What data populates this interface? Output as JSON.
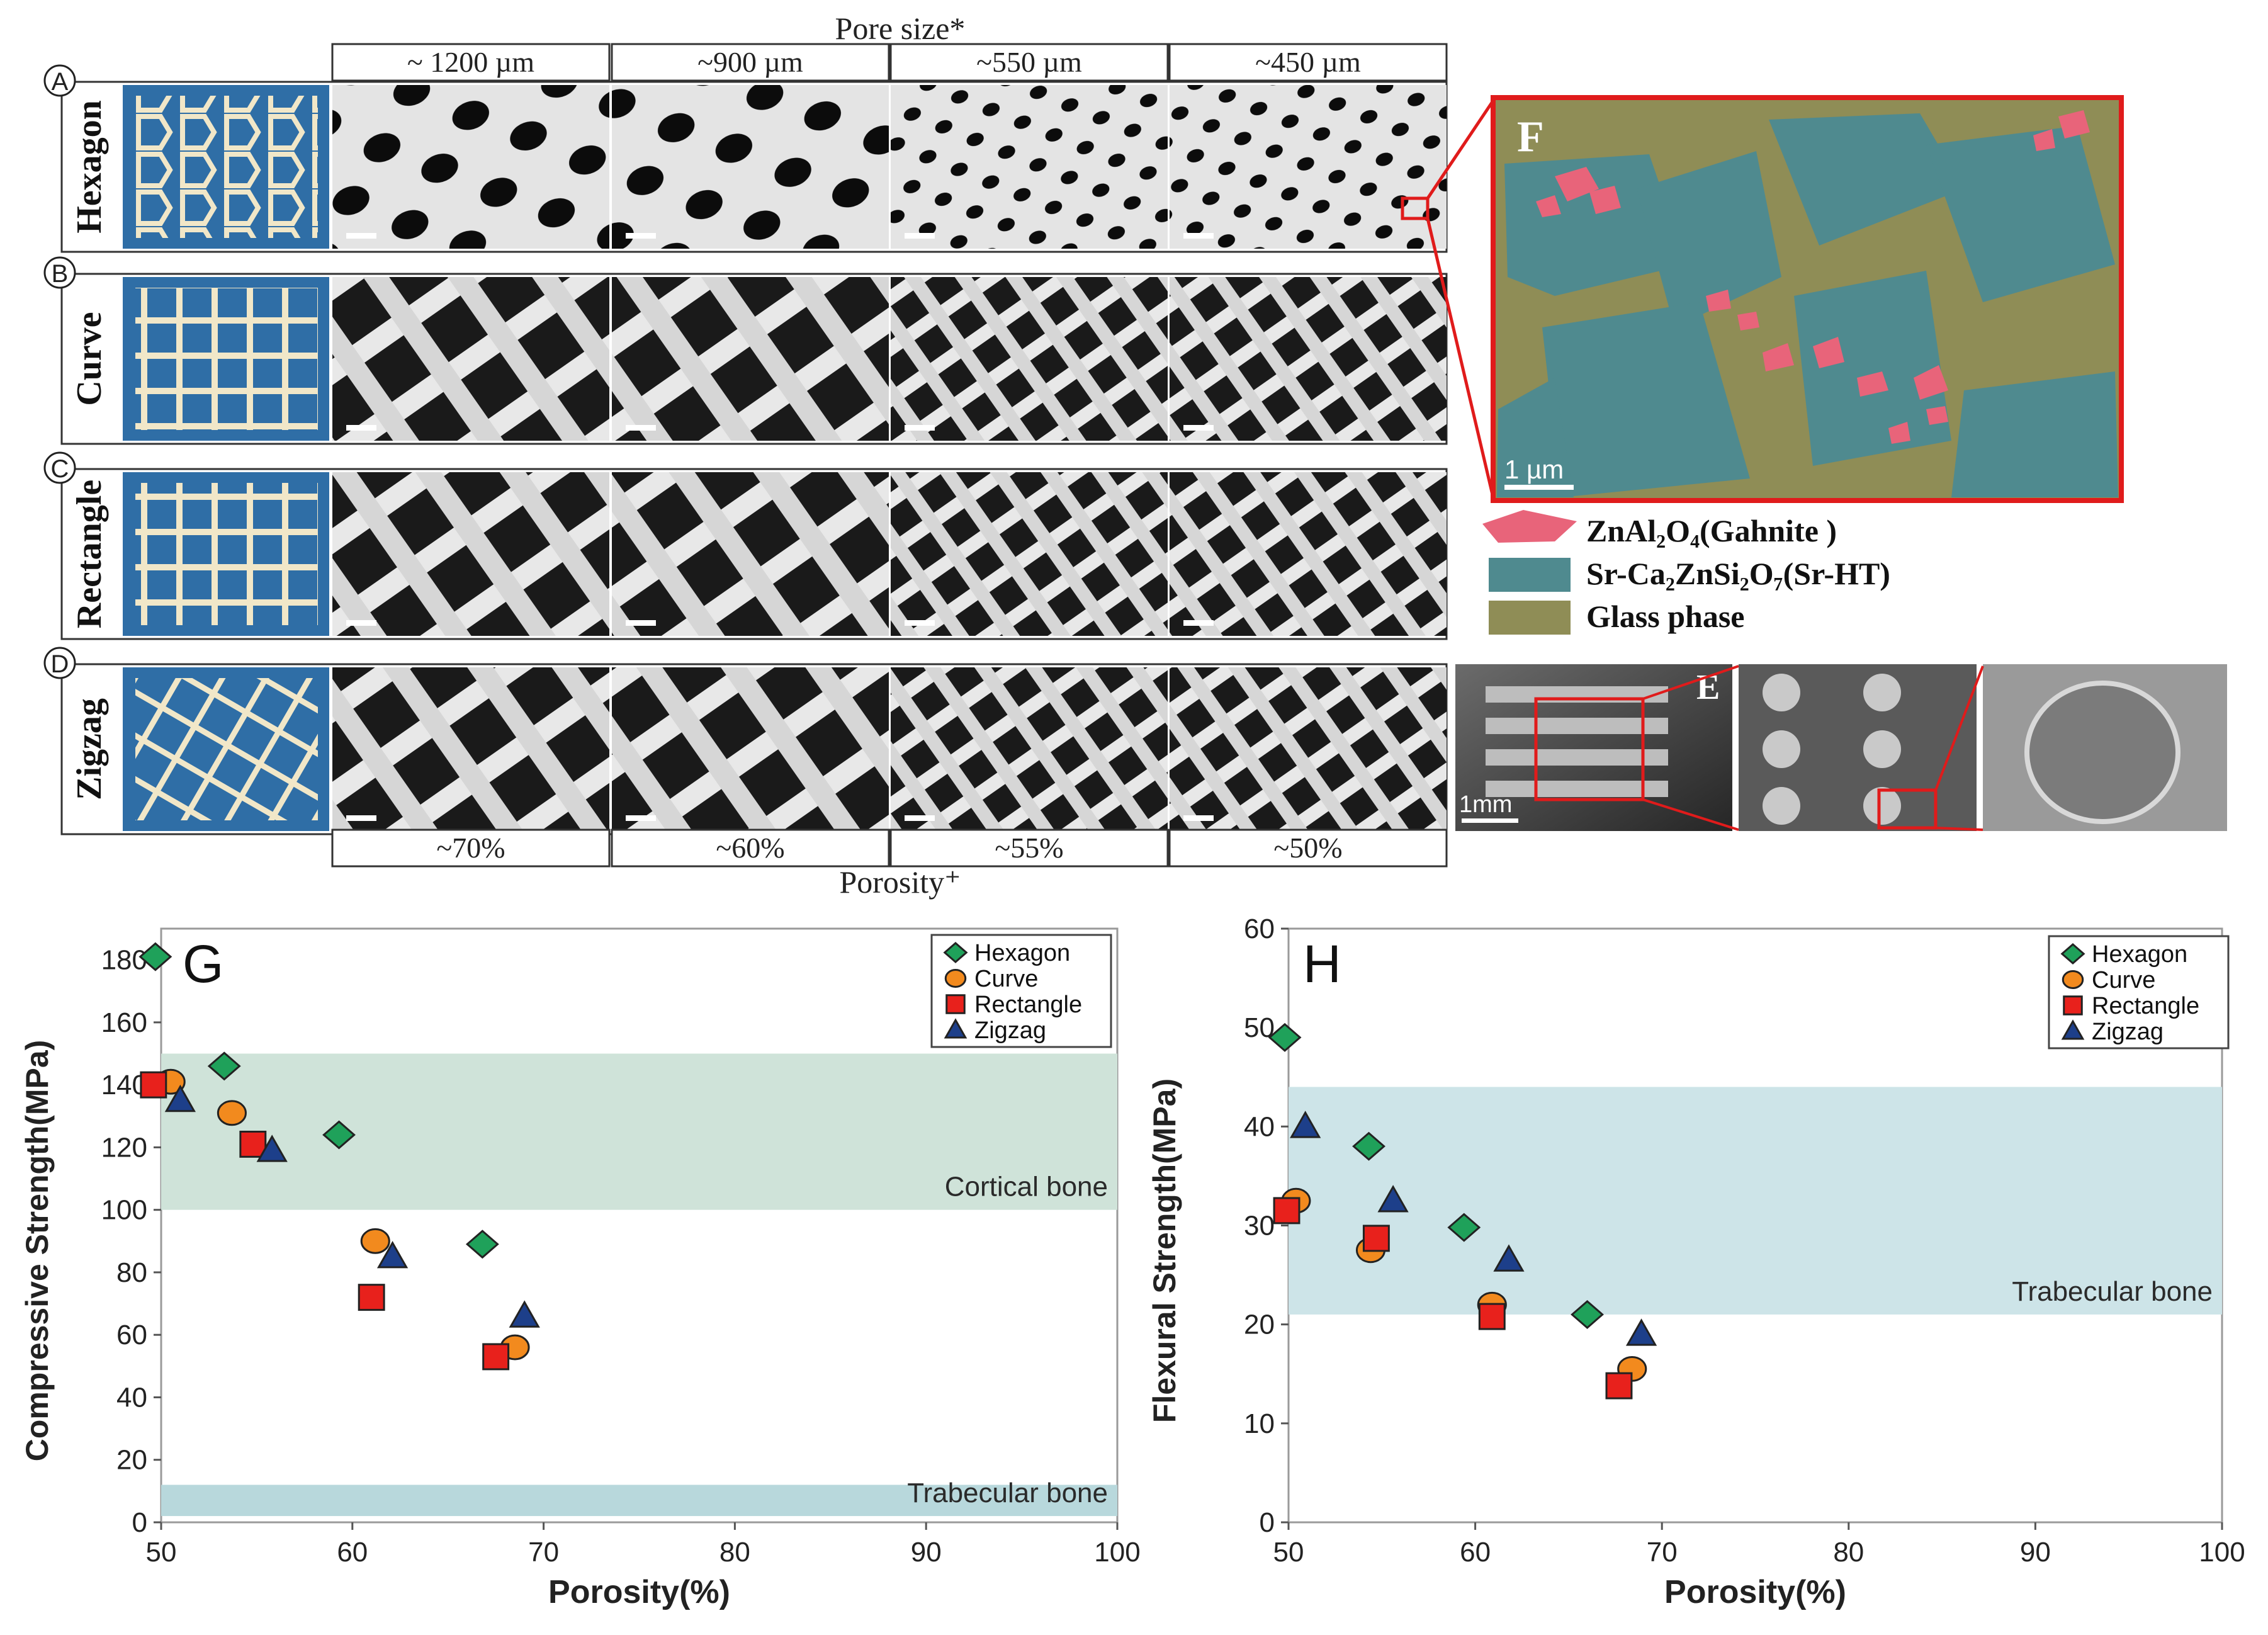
{
  "top_panel": {
    "pore_size_title": "Pore size*",
    "porosity_title": "Porosity⁺",
    "pore_sizes": [
      "~ 1200 µm",
      "~900 µm",
      "~550 µm",
      "~450 µm"
    ],
    "porosities": [
      "~70%",
      "~60%",
      "~55%",
      "~50%"
    ],
    "rows": [
      {
        "letter": "A",
        "name": "Hexagon"
      },
      {
        "letter": "B",
        "name": "Curve"
      },
      {
        "letter": "C",
        "name": "Rectangle"
      },
      {
        "letter": "D",
        "name": "Zigzag"
      }
    ]
  },
  "panel_f": {
    "letter": "F",
    "scale_bar": "1 µm",
    "colors": {
      "gahnite": "#e8647a",
      "srht": "#4f8a8f",
      "glass": "#8f8d56"
    },
    "legend": [
      {
        "key": "gahnite",
        "label": "ZnAl₂O₄(Gahnite )"
      },
      {
        "key": "srht",
        "label": "Sr-Ca₂ZnSi₂O₇(Sr-HT)"
      },
      {
        "key": "glass",
        "label": "Glass phase"
      }
    ]
  },
  "panel_e": {
    "letter": "E",
    "scale_bar": "1mm"
  },
  "series_styles": {
    "Hexagon": {
      "marker": "diamond",
      "color": "#1fa15a"
    },
    "Curve": {
      "marker": "circle",
      "color": "#f28a1e"
    },
    "Rectangle": {
      "marker": "square",
      "color": "#e8211c"
    },
    "Zigzag": {
      "marker": "triangle",
      "color": "#1d3f8a"
    }
  },
  "chart_data": [
    {
      "id": "G",
      "type": "scatter",
      "panel_letter": "G",
      "xlabel": "Porosity(%)",
      "ylabel": "Compressive Strength(MPa)",
      "xlim": [
        50,
        100
      ],
      "ylim": [
        0,
        190
      ],
      "xticks": [
        50,
        60,
        70,
        80,
        90,
        100
      ],
      "yticks": [
        0,
        20,
        40,
        60,
        80,
        100,
        120,
        140,
        160,
        180
      ],
      "legend_position": "top-right",
      "bands": [
        {
          "label": "Cortical bone",
          "y0": 100,
          "y1": 150,
          "color": "#cfe3d9"
        },
        {
          "label": "Trabecular bone",
          "y0": 2,
          "y1": 12,
          "color": "#b8d8dc"
        }
      ],
      "series": [
        {
          "name": "Hexagon",
          "points": [
            [
              49.7,
              181
            ],
            [
              53.3,
              146
            ],
            [
              59.3,
              124
            ],
            [
              66.8,
              89
            ]
          ]
        },
        {
          "name": "Curve",
          "points": [
            [
              50.5,
              141
            ],
            [
              53.7,
              131
            ],
            [
              61.2,
              90
            ],
            [
              68.5,
              56
            ]
          ]
        },
        {
          "name": "Rectangle",
          "points": [
            [
              49.6,
              140
            ],
            [
              54.8,
              121
            ],
            [
              61,
              72
            ],
            [
              67.5,
              53
            ]
          ]
        },
        {
          "name": "Zigzag",
          "points": [
            [
              51.0,
              135
            ],
            [
              55.8,
              119
            ],
            [
              62.1,
              85
            ],
            [
              69.0,
              66
            ]
          ]
        }
      ]
    },
    {
      "id": "H",
      "type": "scatter",
      "panel_letter": "H",
      "xlabel": "Porosity(%)",
      "ylabel": "Flexural  Strength(MPa)",
      "xlim": [
        50,
        100
      ],
      "ylim": [
        0,
        60
      ],
      "xticks": [
        50,
        60,
        70,
        80,
        90,
        100
      ],
      "yticks": [
        0,
        10,
        20,
        30,
        40,
        50,
        60
      ],
      "legend_position": "top-right",
      "bands": [
        {
          "label": "Trabecular bone",
          "y0": 21,
          "y1": 44,
          "color": "#cde4e8"
        }
      ],
      "series": [
        {
          "name": "Hexagon",
          "points": [
            [
              49.8,
              49
            ],
            [
              54.3,
              38
            ],
            [
              59.4,
              29.8
            ],
            [
              66,
              21
            ]
          ]
        },
        {
          "name": "Curve",
          "points": [
            [
              50.4,
              32.5
            ],
            [
              54.4,
              27.5
            ],
            [
              60.9,
              22
            ],
            [
              68.4,
              15.5
            ]
          ]
        },
        {
          "name": "Rectangle",
          "points": [
            [
              49.9,
              31.5
            ],
            [
              54.7,
              28.7
            ],
            [
              60.9,
              20.8
            ],
            [
              67.7,
              13.8
            ]
          ]
        },
        {
          "name": "Zigzag",
          "points": [
            [
              50.9,
              40
            ],
            [
              55.6,
              32.5
            ],
            [
              61.8,
              26.5
            ],
            [
              68.9,
              19
            ]
          ]
        }
      ]
    }
  ]
}
